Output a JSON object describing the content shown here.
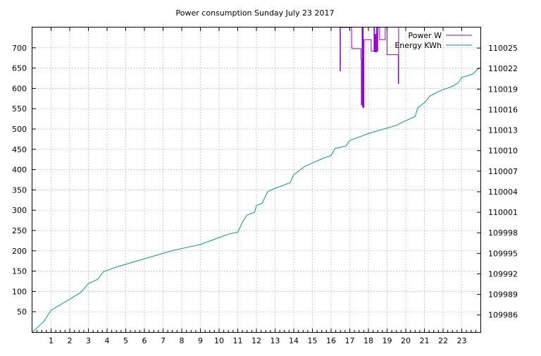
{
  "chart_data": {
    "type": "line",
    "title": "Power consumption Sunday July 23 2017",
    "xlabel": "",
    "ylabel": "",
    "y2label": "",
    "xlim": [
      0,
      24
    ],
    "ylim": [
      0,
      750
    ],
    "y2lim": [
      109983.5,
      110028
    ],
    "x_ticks": [
      1,
      2,
      3,
      4,
      5,
      6,
      7,
      8,
      9,
      10,
      11,
      12,
      13,
      14,
      15,
      16,
      17,
      18,
      19,
      20,
      21,
      22,
      23
    ],
    "y_ticks": [
      50,
      100,
      150,
      200,
      250,
      300,
      350,
      400,
      450,
      500,
      550,
      600,
      650,
      700
    ],
    "y2_ticks": [
      109986,
      109989,
      109992,
      109995,
      109998,
      110001,
      110004,
      110007,
      110010,
      110013,
      110016,
      110019,
      110022,
      110025
    ],
    "grid": true,
    "legend_position": "top-right",
    "colors": {
      "power": "#9400d3",
      "energy": "#009e73"
    },
    "series": [
      {
        "name": "Power W",
        "axis": "left",
        "style": "step",
        "x": [
          16.45,
          16.48,
          16.5,
          17.1,
          17.12,
          17.2,
          17.6,
          17.62,
          17.66,
          17.68,
          17.7,
          17.72,
          17.76,
          17.78,
          18.1,
          18.15,
          18.3,
          18.33,
          18.36,
          18.4,
          18.44,
          18.47,
          18.5,
          18.6,
          18.65,
          18.9,
          19.0,
          19.05,
          19.58,
          19.6,
          19.62
        ],
        "values": [
          750,
          643,
          750,
          703,
          698,
          698,
          673,
          560,
          750,
          555,
          750,
          553,
          720,
          720,
          720,
          692,
          750,
          690,
          733,
          690,
          750,
          692,
          750,
          720,
          720,
          750,
          683,
          683,
          683,
          612,
          750
        ]
      },
      {
        "name": "Energy KWh",
        "axis": "right",
        "x": [
          0,
          0.6,
          1.0,
          1.5,
          2.0,
          2.6,
          3.0,
          3.5,
          3.8,
          4.5,
          5.5,
          6.5,
          7.5,
          8.0,
          9.0,
          10.0,
          10.5,
          11.0,
          11.3,
          11.5,
          11.9,
          12.0,
          12.3,
          12.6,
          13.0,
          13.8,
          14.0,
          14.6,
          15.0,
          15.5,
          16.0,
          16.2,
          16.8,
          17.0,
          17.5,
          18.0,
          18.6,
          19.0,
          19.5,
          20.0,
          20.5,
          20.65,
          21.0,
          21.3,
          21.8,
          22.5,
          22.8,
          23.0,
          23.6,
          23.95
        ],
        "values": [
          109983.5,
          109985.0,
          109986.7,
          109987.5,
          109988.3,
          109989.3,
          109990.6,
          109991.2,
          109992.3,
          109993.0,
          109993.8,
          109994.6,
          109995.4,
          109995.7,
          109996.3,
          109997.3,
          109997.8,
          109998.1,
          109999.8,
          110000.6,
          110001.0,
          110002.0,
          110002.3,
          110004.0,
          110004.5,
          110005.3,
          110006.5,
          110007.7,
          110008.2,
          110008.8,
          110009.3,
          110010.3,
          110010.7,
          110011.5,
          110012.0,
          110012.5,
          110013.0,
          110013.3,
          110013.7,
          110014.4,
          110015.0,
          110016.3,
          110017.0,
          110018.0,
          110018.7,
          110019.4,
          110019.9,
          110020.7,
          110021.2,
          110022.2
        ]
      }
    ]
  }
}
